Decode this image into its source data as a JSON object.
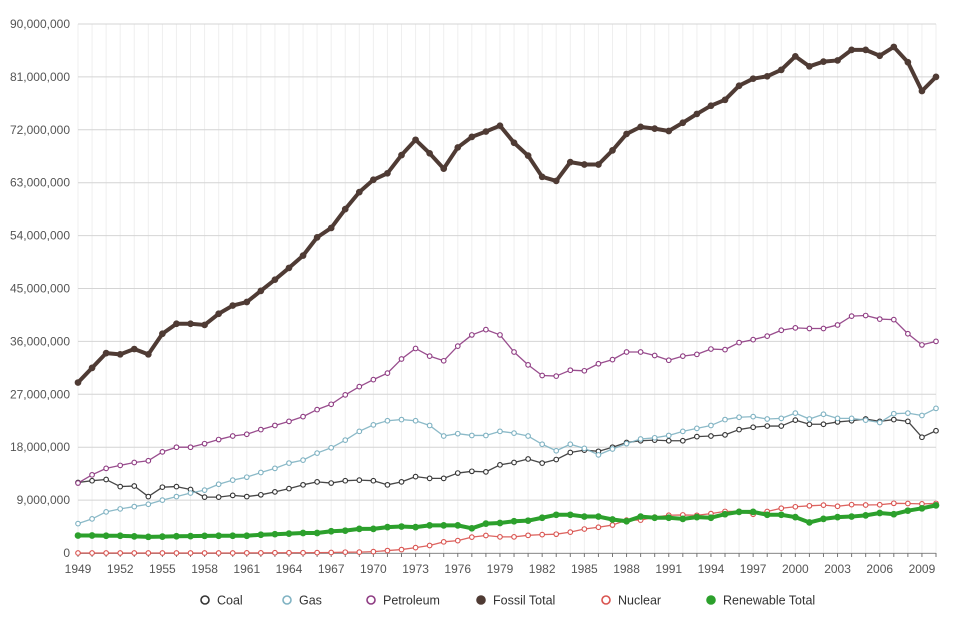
{
  "chart_data": {
    "type": "line",
    "title": "",
    "xlabel": "",
    "ylabel": "",
    "x": [
      1949,
      1950,
      1951,
      1952,
      1953,
      1954,
      1955,
      1956,
      1957,
      1958,
      1959,
      1960,
      1961,
      1962,
      1963,
      1964,
      1965,
      1966,
      1967,
      1968,
      1969,
      1970,
      1971,
      1972,
      1973,
      1974,
      1975,
      1976,
      1977,
      1978,
      1979,
      1980,
      1981,
      1982,
      1983,
      1984,
      1985,
      1986,
      1987,
      1988,
      1989,
      1990,
      1991,
      1992,
      1993,
      1994,
      1995,
      1996,
      1997,
      1998,
      1999,
      2000,
      2001,
      2002,
      2003,
      2004,
      2005,
      2006,
      2007,
      2008,
      2009,
      2010
    ],
    "xlim": [
      1949,
      2010
    ],
    "x_tick_labels": [
      "1949",
      "1952",
      "1955",
      "1958",
      "1961",
      "1964",
      "1967",
      "1970",
      "1973",
      "1976",
      "1979",
      "1982",
      "1985",
      "1988",
      "1991",
      "1994",
      "1997",
      "2000",
      "2003",
      "2006",
      "2009"
    ],
    "ylim": [
      0,
      90000000
    ],
    "y_tick_labels": [
      "0",
      "9,000,000",
      "18,000,000",
      "27,000,000",
      "36,000,000",
      "45,000,000",
      "54,000,000",
      "63,000,000",
      "72,000,000",
      "81,000,000",
      "90,000,000"
    ],
    "grid": true,
    "legend_position": "bottom",
    "series": [
      {
        "name": "Coal",
        "color": "#333333",
        "marker": "open-circle",
        "values": [
          12000000.0,
          12300000.0,
          12500000.0,
          11300000.0,
          11400000.0,
          9600000.0,
          11200000.0,
          11300000.0,
          10800000.0,
          9500000.0,
          9500000.0,
          9800000.0,
          9600000.0,
          9900000.0,
          10400000.0,
          10960000.0,
          11600000.0,
          12100000.0,
          11900000.0,
          12300000.0,
          12400000.0,
          12300000.0,
          11600000.0,
          12100000.0,
          13000000.0,
          12700000.0,
          12700000.0,
          13600000.0,
          13900000.0,
          13800000.0,
          15000000.0,
          15400000.0,
          16000000.0,
          15300000.0,
          15900000.0,
          17100000.0,
          17500000.0,
          17300000.0,
          18000000.0,
          18800000.0,
          19100000.0,
          19200000.0,
          19100000.0,
          19100000.0,
          19800000.0,
          19900000.0,
          20100000.0,
          21000000.0,
          21400000.0,
          21600000.0,
          21600000.0,
          22600000.0,
          21900000.0,
          21900000.0,
          22300000.0,
          22500000.0,
          22800000.0,
          22400000.0,
          22700000.0,
          22400000.0,
          19700000.0,
          20800000.0
        ]
      },
      {
        "name": "Gas",
        "color": "#7fb2c2",
        "marker": "open-circle",
        "values": [
          5000000.0,
          5800000.0,
          7000000.0,
          7500000.0,
          7900000.0,
          8300000.0,
          9000000.0,
          9600000.0,
          10200000.0,
          10700000.0,
          11700000.0,
          12400000.0,
          12900000.0,
          13700000.0,
          14400000.0,
          15300000.0,
          15800000.0,
          17000000.0,
          17900000.0,
          19200000.0,
          20700000.0,
          21800000.0,
          22500000.0,
          22700000.0,
          22500000.0,
          21700000.0,
          19900000.0,
          20300000.0,
          20000000.0,
          20000000.0,
          20700000.0,
          20400000.0,
          19900000.0,
          18500000.0,
          17400000.0,
          18500000.0,
          17800000.0,
          16700000.0,
          17700000.0,
          18600000.0,
          19400000.0,
          19600000.0,
          20000000.0,
          20700000.0,
          21200000.0,
          21700000.0,
          22700000.0,
          23100000.0,
          23200000.0,
          22800000.0,
          22900000.0,
          23800000.0,
          22800000.0,
          23600000.0,
          22900000.0,
          22900000.0,
          22600000.0,
          22200000.0,
          23700000.0,
          23800000.0,
          23400000.0,
          24600000.0
        ]
      },
      {
        "name": "Petroleum",
        "color": "#8e3b82",
        "marker": "open-circle",
        "values": [
          11900000.0,
          13300000.0,
          14400000.0,
          14900000.0,
          15400000.0,
          15700000.0,
          17200000.0,
          18000000.0,
          18000000.0,
          18600000.0,
          19300000.0,
          19900000.0,
          20200000.0,
          21000000.0,
          21700000.0,
          22400000.0,
          23200000.0,
          24400000.0,
          25300000.0,
          26900000.0,
          28300000.0,
          29500000.0,
          30600000.0,
          33000000.0,
          34800000.0,
          33500000.0,
          32700000.0,
          35200000.0,
          37100000.0,
          38000000.0,
          37100000.0,
          34200000.0,
          32000000.0,
          30200000.0,
          30100000.0,
          31100000.0,
          31000000.0,
          32200000.0,
          32900000.0,
          34200000.0,
          34200000.0,
          33600000.0,
          32800000.0,
          33500000.0,
          33800000.0,
          34700000.0,
          34600000.0,
          35800000.0,
          36300000.0,
          36900000.0,
          37900000.0,
          38300000.0,
          38200000.0,
          38200000.0,
          38800000.0,
          40300000.0,
          40400000.0,
          39800000.0,
          39700000.0,
          37300000.0,
          35400000.0,
          36000000.0
        ]
      },
      {
        "name": "Fossil Total",
        "color": "#4f3b34",
        "marker": "filled-circle",
        "values": [
          29000000.0,
          31500000.0,
          34000000.0,
          33800000.0,
          34700000.0,
          33800000.0,
          37300000.0,
          39000000.0,
          39000000.0,
          38800000.0,
          40700000.0,
          42100000.0,
          42700000.0,
          44600000.0,
          46500000.0,
          48500000.0,
          50600000.0,
          53700000.0,
          55300000.0,
          58500000.0,
          61400000.0,
          63500000.0,
          64600000.0,
          67700000.0,
          70300000.0,
          68000000.0,
          65400000.0,
          69000000.0,
          70800000.0,
          71700000.0,
          72700000.0,
          69800000.0,
          67600000.0,
          64000000.0,
          63300000.0,
          66500000.0,
          66100000.0,
          66100000.0,
          68500000.0,
          71300000.0,
          72500000.0,
          72200000.0,
          71800000.0,
          73200000.0,
          74700000.0,
          76100000.0,
          77100000.0,
          79500000.0,
          80700000.0,
          81100000.0,
          82200000.0,
          84500000.0,
          82800000.0,
          83600000.0,
          83800000.0,
          85600000.0,
          85600000.0,
          84600000.0,
          86100000.0,
          83500000.0,
          78600000.0,
          81000000.0
        ]
      },
      {
        "name": "Nuclear",
        "color": "#d9534f",
        "marker": "open-circle",
        "values": [
          0,
          0,
          0,
          0,
          0,
          0,
          0,
          0,
          2000,
          2000,
          2000,
          6000,
          20000,
          26000,
          38000,
          40000,
          43000,
          64000,
          88000,
          142000,
          154000,
          239000,
          413000,
          584000,
          910000,
          1272000,
          1900000,
          2111000,
          2702000,
          2977000,
          2748000,
          2739000,
          3008000,
          3131000,
          3203000,
          3553000,
          4076000,
          4380000,
          4754000,
          5587000,
          5602000,
          6104000,
          6422000,
          6479000,
          6410000,
          6694000,
          7075000,
          7087000,
          6597000,
          7068000,
          7610000,
          7862000,
          8029000,
          8145000,
          7960000,
          8223000,
          8161000,
          8215000,
          8455000,
          8427000,
          8356000,
          8434000
        ]
      },
      {
        "name": "Renewable Total",
        "color": "#2ca02c",
        "marker": "filled-circle",
        "values": [
          2970000.0,
          2980000.0,
          2940000.0,
          2940000.0,
          2830000.0,
          2750000.0,
          2780000.0,
          2850000.0,
          2870000.0,
          2920000.0,
          2930000.0,
          2930000.0,
          2940000.0,
          3100000.0,
          3200000.0,
          3300000.0,
          3400000.0,
          3400000.0,
          3700000.0,
          3800000.0,
          4100000.0,
          4100000.0,
          4400000.0,
          4500000.0,
          4400000.0,
          4700000.0,
          4700000.0,
          4700000.0,
          4200000.0,
          5000000.0,
          5100000.0,
          5400000.0,
          5500000.0,
          6000000.0,
          6500000.0,
          6500000.0,
          6200000.0,
          6200000.0,
          5700000.0,
          5400000.0,
          6200000.0,
          6000000.0,
          6000000.0,
          5800000.0,
          6100000.0,
          6000000.0,
          6600000.0,
          7000000.0,
          7000000.0,
          6500000.0,
          6500000.0,
          6100000.0,
          5200000.0,
          5800000.0,
          6100000.0,
          6200000.0,
          6400000.0,
          6800000.0,
          6600000.0,
          7200000.0,
          7600000.0,
          8100000.0
        ]
      }
    ]
  }
}
